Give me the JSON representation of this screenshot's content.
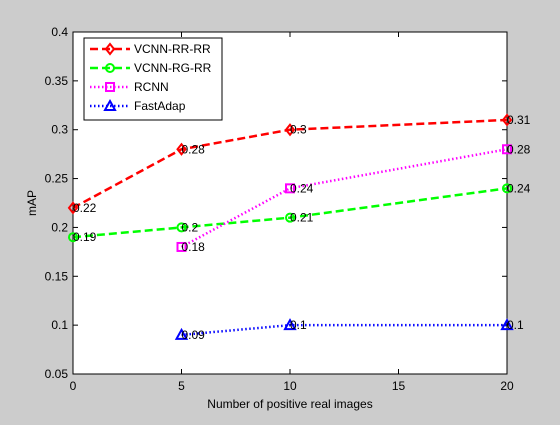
{
  "chart_data": {
    "type": "line",
    "title": "",
    "xlabel": "Number of positive real images",
    "ylabel": "mAP",
    "xlim": [
      0,
      20
    ],
    "ylim": [
      0.05,
      0.4
    ],
    "xticks": [
      0,
      5,
      10,
      15,
      20
    ],
    "xtick_labels": [
      "0",
      "5",
      "10",
      "15",
      "20"
    ],
    "yticks": [
      0.05,
      0.1,
      0.15,
      0.2,
      0.25,
      0.3,
      0.35,
      0.4
    ],
    "ytick_labels": [
      "0.05",
      "0.1",
      "0.15",
      "0.2",
      "0.25",
      "0.3",
      "0.35",
      "0.4"
    ],
    "grid": false,
    "legend_position": "top-left",
    "series": [
      {
        "name": "VCNN-RR-RR",
        "color": "#ff0000",
        "line_style": "dashed",
        "marker": "diamond",
        "x": [
          0,
          5,
          10,
          20
        ],
        "values": [
          0.22,
          0.28,
          0.3,
          0.31
        ],
        "labels": [
          "0.22",
          "0.28",
          "0.3",
          "0.31"
        ]
      },
      {
        "name": "VCNN-RG-RR",
        "color": "#00ff00",
        "line_style": "dashed",
        "marker": "circle",
        "x": [
          0,
          5,
          10,
          20
        ],
        "values": [
          0.19,
          0.2,
          0.21,
          0.24
        ],
        "labels": [
          "0.19",
          "0.2",
          "0.21",
          "0.24"
        ]
      },
      {
        "name": "RCNN",
        "color": "#ff00ff",
        "line_style": "dotted",
        "marker": "square",
        "x": [
          5,
          10,
          20
        ],
        "values": [
          0.18,
          0.24,
          0.28
        ],
        "labels": [
          "0.18",
          "0.24",
          "0.28"
        ]
      },
      {
        "name": "FastAdap",
        "color": "#0000ff",
        "line_style": "dotted",
        "marker": "triangle",
        "x": [
          5,
          10,
          20
        ],
        "values": [
          0.09,
          0.1,
          0.1
        ],
        "labels": [
          "0.09",
          "0.1",
          "0.1"
        ]
      }
    ]
  }
}
